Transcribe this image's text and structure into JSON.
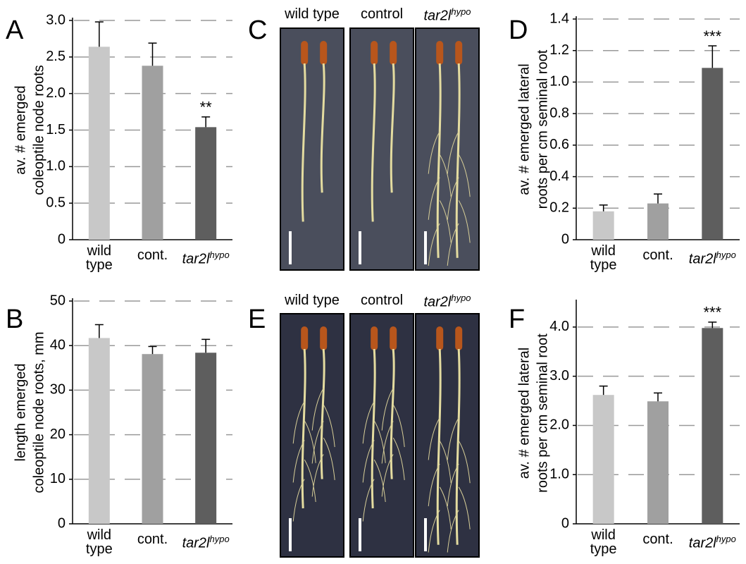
{
  "chart_data": [
    {
      "type": "bar",
      "label": "A",
      "ylabel": [
        "av. # emerged",
        "coleoptile node roots"
      ],
      "categories": [
        "wild type",
        "cont.",
        "tar2l"
      ],
      "category_superscripts": [
        null,
        null,
        "hypo"
      ],
      "series": [
        {
          "colors": [
            "#c8c8c8",
            "#a0a0a0",
            "#5e5e5e"
          ],
          "values": [
            2.64,
            2.38,
            1.54
          ],
          "errors": [
            0.34,
            0.31,
            0.14
          ],
          "significance": [
            null,
            null,
            "**"
          ]
        }
      ],
      "ylim": [
        0,
        3
      ],
      "yticks": [
        0,
        0.5,
        {
          "value": 1,
          "label": "1.0"
        },
        1.5,
        {
          "value": 2,
          "label": "2.0"
        },
        2.5,
        {
          "value": 3,
          "label": "3.0"
        }
      ],
      "grid": true
    },
    {
      "type": "bar",
      "label": "B",
      "ylabel": [
        "length emerged",
        "coleoptile node roots, mm"
      ],
      "categories": [
        "wild type",
        "cont.",
        "tar2l"
      ],
      "category_superscripts": [
        null,
        null,
        "hypo"
      ],
      "series": [
        {
          "colors": [
            "#c8c8c8",
            "#a0a0a0",
            "#5e5e5e"
          ],
          "values": [
            41.7,
            38.1,
            38.4
          ],
          "errors": [
            3.0,
            1.7,
            3.0
          ],
          "significance": [
            null,
            null,
            null
          ]
        }
      ],
      "ylim": [
        0,
        50
      ],
      "yticks": [
        0,
        10,
        20,
        30,
        40,
        50
      ],
      "grid": true
    },
    {
      "type": "bar",
      "label": "D",
      "ylabel": [
        "av. # emerged lateral",
        "roots per cm seminal root"
      ],
      "categories": [
        "wild type",
        "cont.",
        "tar2l"
      ],
      "category_superscripts": [
        null,
        null,
        "hypo"
      ],
      "series": [
        {
          "colors": [
            "#c8c8c8",
            "#a0a0a0",
            "#5e5e5e"
          ],
          "values": [
            0.18,
            0.23,
            1.09
          ],
          "errors": [
            0.04,
            0.06,
            0.14
          ],
          "significance": [
            null,
            null,
            "***"
          ]
        }
      ],
      "ylim": [
        0,
        1.4
      ],
      "yticks": [
        0,
        0.2,
        0.4,
        0.6,
        0.8,
        {
          "value": 1,
          "label": "1.0"
        },
        1.2,
        1.4
      ],
      "grid": true
    },
    {
      "type": "bar",
      "label": "F",
      "ylabel": [
        "av. # emerged lateral",
        "roots per cm seminal root"
      ],
      "categories": [
        "wild type",
        "cont.",
        "tar2l"
      ],
      "category_superscripts": [
        null,
        null,
        "hypo"
      ],
      "series": [
        {
          "colors": [
            "#c8c8c8",
            "#a0a0a0",
            "#5e5e5e"
          ],
          "values": [
            2.62,
            2.49,
            3.98
          ],
          "errors": [
            0.18,
            0.17,
            0.12
          ],
          "significance": [
            null,
            null,
            "***"
          ]
        }
      ],
      "ylim": [
        0,
        4.5
      ],
      "yticks": [
        0,
        {
          "value": 1,
          "label": "1.0"
        },
        {
          "value": 2,
          "label": "2.0"
        },
        {
          "value": 3,
          "label": "3.0"
        },
        {
          "value": 4,
          "label": "4.0"
        }
      ],
      "grid": true
    }
  ],
  "photos": [
    {
      "label": "C",
      "columns": [
        "wild type",
        "control",
        "tar2l"
      ],
      "superscripts": [
        null,
        null,
        "hypo"
      ]
    },
    {
      "label": "E",
      "columns": [
        "wild type",
        "control",
        "tar2l"
      ],
      "superscripts": [
        null,
        null,
        "hypo"
      ]
    }
  ]
}
